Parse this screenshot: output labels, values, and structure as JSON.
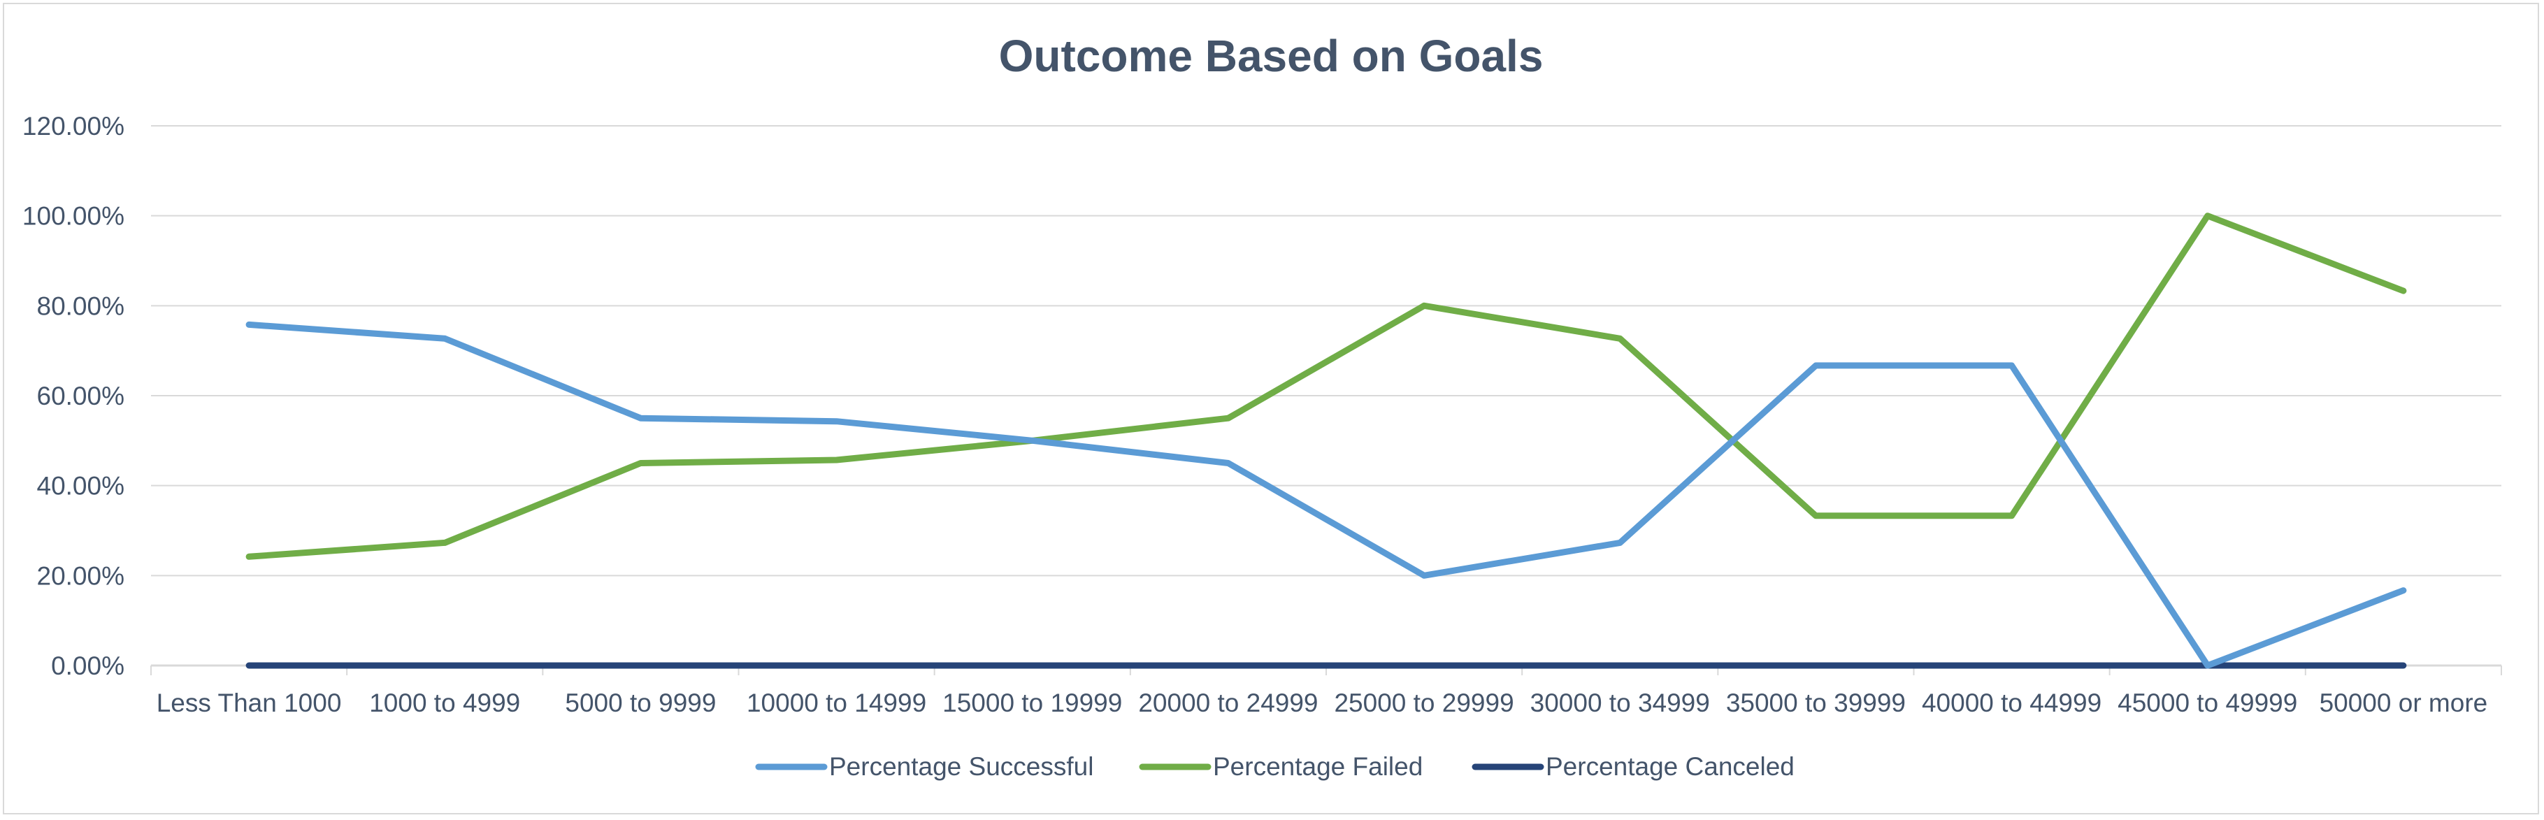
{
  "chart_data": {
    "type": "line",
    "title": "Outcome Based on Goals",
    "xlabel": "",
    "ylabel": "",
    "ylim": [
      0,
      1.2
    ],
    "yticks": [
      {
        "value": 0,
        "label": "0.00%"
      },
      {
        "value": 0.2,
        "label": "20.00%"
      },
      {
        "value": 0.4,
        "label": "40.00%"
      },
      {
        "value": 0.6,
        "label": "60.00%"
      },
      {
        "value": 0.8,
        "label": "80.00%"
      },
      {
        "value": 1.0,
        "label": "100.00%"
      },
      {
        "value": 1.2,
        "label": "120.00%"
      }
    ],
    "grid": true,
    "legend_position": "bottom",
    "categories": [
      "Less Than 1000",
      "1000 to 4999",
      "5000 to 9999",
      "10000 to 14999",
      "15000 to 19999",
      "20000 to 24999",
      "25000 to 29999",
      "30000 to 34999",
      "35000 to 39999",
      "40000 to 44999",
      "45000 to 49999",
      "50000 or more"
    ],
    "series": [
      {
        "name": "Percentage Successful",
        "color": "#5b9bd5",
        "values": [
          0.758,
          0.727,
          0.55,
          0.543,
          0.5,
          0.45,
          0.2,
          0.273,
          0.667,
          0.667,
          0.0,
          0.167
        ]
      },
      {
        "name": "Percentage Failed",
        "color": "#70ad47",
        "values": [
          0.242,
          0.273,
          0.45,
          0.457,
          0.5,
          0.55,
          0.8,
          0.727,
          0.333,
          0.333,
          1.0,
          0.833
        ]
      },
      {
        "name": "Percentage Canceled",
        "color": "#264478",
        "values": [
          0,
          0,
          0,
          0,
          0,
          0,
          0,
          0,
          0,
          0,
          0,
          0
        ]
      }
    ]
  }
}
